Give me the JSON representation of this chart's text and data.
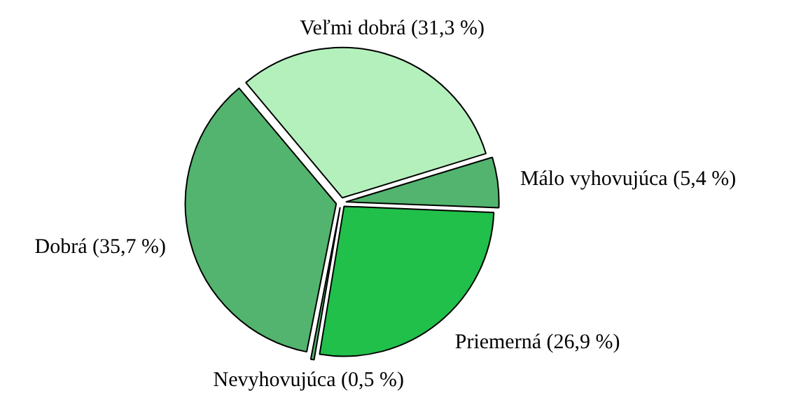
{
  "chart_data": {
    "type": "pie",
    "categories": [
      "Veľmi dobrá",
      "Málo vyhovujúca",
      "Priemerná",
      "Nevyhovujúca",
      "Dobrá"
    ],
    "values": [
      31.3,
      5.4,
      26.9,
      0.5,
      35.7
    ],
    "value_labels": [
      "(31,3 %)",
      "(5,4 %)",
      "(26,9 %)",
      "(0,5 %)",
      "(35,7 %)"
    ],
    "colors": [
      "#b4f0bc",
      "#52b46e",
      "#20c04a",
      "#52b46e",
      "#52b46e"
    ],
    "legend": false
  }
}
